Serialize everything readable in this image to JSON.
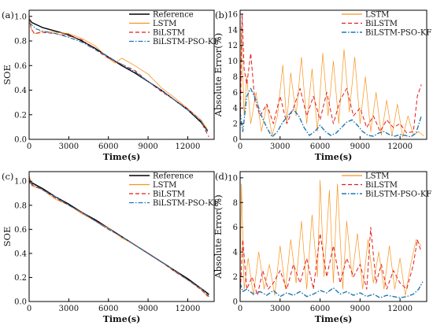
{
  "chart_data": [
    {
      "id": "a",
      "panel_label": "(a)",
      "type": "line",
      "xlabel": "Time(s)",
      "ylabel": "SOE",
      "xlim": [
        0,
        14000
      ],
      "ylim": [
        0.0,
        1.05
      ],
      "xticks": [
        0,
        3000,
        6000,
        9000,
        12000
      ],
      "yticks": [
        0.0,
        0.2,
        0.4,
        0.6,
        0.8,
        1.0
      ],
      "ytick_decimals": 1,
      "legend": "top-right",
      "series": [
        {
          "name": "Reference",
          "color": "#000000",
          "dash": "",
          "width": 1.4,
          "x": [
            0,
            200,
            1000,
            2000,
            3000,
            4000,
            5000,
            6000,
            7000,
            8000,
            9000,
            10000,
            11000,
            12000,
            13000,
            13500
          ],
          "y": [
            0.98,
            0.95,
            0.91,
            0.88,
            0.85,
            0.8,
            0.74,
            0.67,
            0.6,
            0.54,
            0.47,
            0.4,
            0.32,
            0.24,
            0.14,
            0.07
          ]
        },
        {
          "name": "LSTM",
          "color": "#f7941d",
          "dash": "",
          "width": 0.8,
          "x": [
            0,
            150,
            400,
            1000,
            2000,
            3000,
            4000,
            5000,
            6000,
            6500,
            7000,
            8000,
            9000,
            10000,
            11000,
            12000,
            13000,
            13500
          ],
          "y": [
            1.0,
            0.9,
            0.86,
            0.88,
            0.87,
            0.86,
            0.82,
            0.76,
            0.66,
            0.62,
            0.66,
            0.6,
            0.53,
            0.42,
            0.34,
            0.25,
            0.16,
            0.08
          ]
        },
        {
          "name": "BiLSTM",
          "color": "#e31a1c",
          "dash": "5,3",
          "width": 1.0,
          "x": [
            0,
            150,
            400,
            1000,
            2000,
            3000,
            4000,
            5000,
            6000,
            7000,
            8000,
            9000,
            10000,
            11000,
            12000,
            13000,
            13300,
            13600
          ],
          "y": [
            0.99,
            0.9,
            0.86,
            0.87,
            0.86,
            0.84,
            0.81,
            0.73,
            0.66,
            0.61,
            0.56,
            0.47,
            0.39,
            0.32,
            0.25,
            0.15,
            0.08,
            0.02
          ]
        },
        {
          "name": "BiLSTM-PSO-KF",
          "color": "#1f77b4",
          "dash": "6,2,1.5,2",
          "width": 1.2,
          "x": [
            0,
            500,
            1000,
            2000,
            3000,
            4000,
            5000,
            6000,
            7000,
            8000,
            9000,
            10000,
            11000,
            12000,
            13000,
            13500
          ],
          "y": [
            0.95,
            0.9,
            0.88,
            0.86,
            0.83,
            0.79,
            0.73,
            0.67,
            0.61,
            0.55,
            0.47,
            0.4,
            0.32,
            0.24,
            0.15,
            0.06
          ]
        }
      ]
    },
    {
      "id": "b",
      "panel_label": "(b)",
      "type": "line",
      "xlabel": "Time(s)",
      "ylabel": "Absolute Error(%)",
      "xlim": [
        0,
        14000
      ],
      "ylim": [
        0,
        16.5
      ],
      "xticks": [
        0,
        3000,
        6000,
        9000,
        12000
      ],
      "yticks": [
        0,
        2,
        4,
        6,
        8,
        10,
        12,
        14,
        16
      ],
      "ytick_decimals": 0,
      "legend": "top-right",
      "series": [
        {
          "name": "LSTM",
          "color": "#f7941d",
          "dash": "",
          "width": 0.7,
          "x": [
            0,
            100,
            300,
            500,
            800,
            1200,
            1600,
            2000,
            2400,
            2800,
            3200,
            3500,
            3800,
            4200,
            4600,
            5000,
            5400,
            5800,
            6200,
            6600,
            7000,
            7400,
            7800,
            8200,
            8600,
            9000,
            9400,
            9800,
            10200,
            10600,
            11000,
            11400,
            11800,
            12200,
            12600,
            13000,
            13400,
            13800
          ],
          "y": [
            0.2,
            14.5,
            3.0,
            8.0,
            2.0,
            6.0,
            1.0,
            4.5,
            0.5,
            3.0,
            9.5,
            2.0,
            8.5,
            3.0,
            10.5,
            2.0,
            9.0,
            1.0,
            11.0,
            3.0,
            10.0,
            2.0,
            11.5,
            3.5,
            10.5,
            2.0,
            8.0,
            1.0,
            6.0,
            0.5,
            5.0,
            0.5,
            4.5,
            0.3,
            3.0,
            0.5,
            1.0,
            0.4
          ]
        },
        {
          "name": "BiLSTM",
          "color": "#e31a1c",
          "dash": "5,3",
          "width": 1.0,
          "x": [
            0,
            150,
            300,
            500,
            800,
            1100,
            1500,
            2000,
            2500,
            3000,
            3500,
            4000,
            4500,
            5000,
            5500,
            6000,
            6500,
            7000,
            7500,
            8000,
            8500,
            9000,
            9500,
            10000,
            10500,
            11000,
            11500,
            12000,
            12500,
            13000,
            13300,
            13600
          ],
          "y": [
            1.0,
            16.0,
            9.0,
            7.0,
            11.0,
            5.0,
            3.0,
            4.5,
            2.0,
            5.5,
            2.0,
            4.0,
            6.5,
            3.0,
            5.5,
            2.5,
            6.0,
            2.0,
            5.0,
            6.5,
            3.0,
            4.0,
            1.5,
            3.0,
            1.0,
            2.5,
            1.5,
            2.0,
            0.8,
            1.0,
            5.5,
            7.0
          ]
        },
        {
          "name": "BiLSTM-PSO-KF",
          "color": "#1f77b4",
          "dash": "6,2,1.5,2",
          "width": 1.4,
          "x": [
            0,
            200,
            500,
            800,
            1200,
            1600,
            2000,
            2400,
            2800,
            3200,
            3600,
            4000,
            4400,
            4800,
            5200,
            5600,
            6000,
            6400,
            6800,
            7200,
            7600,
            8000,
            8400,
            8800,
            9200,
            9600,
            10000,
            10400,
            10800,
            11200,
            11600,
            12000,
            12400,
            12800,
            13200,
            13600
          ],
          "y": [
            3.5,
            1.0,
            5.5,
            6.5,
            5.0,
            3.0,
            1.5,
            0.3,
            1.0,
            2.2,
            3.0,
            3.8,
            3.0,
            1.5,
            0.5,
            1.0,
            1.8,
            1.0,
            0.5,
            0.8,
            1.5,
            2.2,
            2.5,
            1.8,
            1.0,
            0.5,
            0.4,
            0.8,
            1.0,
            0.6,
            0.4,
            0.6,
            0.5,
            0.3,
            0.8,
            3.0
          ]
        }
      ]
    },
    {
      "id": "c",
      "panel_label": "(c)",
      "type": "line",
      "xlabel": "Time(s)",
      "ylabel": "SOE",
      "xlim": [
        0,
        14000
      ],
      "ylim": [
        0.0,
        1.08
      ],
      "xticks": [
        0,
        3000,
        6000,
        9000,
        12000
      ],
      "yticks": [
        0.0,
        0.2,
        0.4,
        0.6,
        0.8,
        1.0
      ],
      "ytick_decimals": 1,
      "legend": "top-right",
      "series": [
        {
          "name": "Reference",
          "color": "#000000",
          "dash": "",
          "width": 1.4,
          "x": [
            0,
            1000,
            2000,
            3000,
            4000,
            5000,
            6000,
            7000,
            8000,
            9000,
            10000,
            11000,
            12000,
            13000,
            13600
          ],
          "y": [
            1.0,
            0.94,
            0.87,
            0.81,
            0.74,
            0.68,
            0.61,
            0.54,
            0.47,
            0.4,
            0.33,
            0.26,
            0.19,
            0.11,
            0.06
          ]
        },
        {
          "name": "LSTM",
          "color": "#f7941d",
          "dash": "",
          "width": 0.8,
          "x": [
            0,
            200,
            1000,
            2000,
            3000,
            4000,
            5000,
            6000,
            7000,
            8000,
            9000,
            10000,
            11000,
            12000,
            13000,
            13500
          ],
          "y": [
            1.05,
            0.96,
            0.93,
            0.85,
            0.8,
            0.73,
            0.67,
            0.61,
            0.53,
            0.47,
            0.4,
            0.33,
            0.25,
            0.18,
            0.1,
            0.04
          ]
        },
        {
          "name": "BiLSTM",
          "color": "#e31a1c",
          "dash": "5,3",
          "width": 1.0,
          "x": [
            0,
            200,
            1000,
            2000,
            3000,
            4000,
            5000,
            6000,
            7000,
            8000,
            9000,
            10000,
            11000,
            12000,
            13000,
            13600
          ],
          "y": [
            1.03,
            0.97,
            0.93,
            0.86,
            0.8,
            0.74,
            0.67,
            0.6,
            0.54,
            0.47,
            0.4,
            0.33,
            0.25,
            0.18,
            0.1,
            0.04
          ]
        },
        {
          "name": "BiLSTM-PSO-KF",
          "color": "#1f77b4",
          "dash": "6,2,1.5,2",
          "width": 1.2,
          "x": [
            0,
            1000,
            2000,
            3000,
            4000,
            5000,
            6000,
            7000,
            8000,
            9000,
            10000,
            11000,
            12000,
            13000,
            13600
          ],
          "y": [
            0.99,
            0.93,
            0.87,
            0.8,
            0.74,
            0.67,
            0.6,
            0.54,
            0.47,
            0.4,
            0.33,
            0.26,
            0.18,
            0.11,
            0.05
          ]
        }
      ]
    },
    {
      "id": "d",
      "panel_label": "(d)",
      "type": "line",
      "xlabel": "Time(s)",
      "ylabel": "Absolute Error(%)",
      "xlim": [
        0,
        14000
      ],
      "ylim": [
        0,
        10.5
      ],
      "xticks": [
        0,
        3000,
        6000,
        9000,
        12000
      ],
      "yticks": [
        0,
        2,
        4,
        6,
        8,
        10
      ],
      "ytick_decimals": 0,
      "legend": "top-right",
      "series": [
        {
          "name": "LSTM",
          "color": "#f7941d",
          "dash": "",
          "width": 0.7,
          "x": [
            0,
            100,
            300,
            600,
            1000,
            1400,
            1800,
            2200,
            2600,
            3000,
            3400,
            3800,
            4200,
            4600,
            5000,
            5400,
            5800,
            6000,
            6300,
            6700,
            7000,
            7300,
            7700,
            8000,
            8400,
            8800,
            9200,
            9600,
            10000,
            10400,
            10800,
            11200,
            11600,
            12000,
            12400,
            12800,
            13200,
            13600
          ],
          "y": [
            0.5,
            9.5,
            1.0,
            3.5,
            0.5,
            4.0,
            1.0,
            3.0,
            0.5,
            4.5,
            1.0,
            5.0,
            1.5,
            6.5,
            1.0,
            7.0,
            2.0,
            9.8,
            2.0,
            9.0,
            1.5,
            9.5,
            1.0,
            6.5,
            2.0,
            5.5,
            1.0,
            5.0,
            1.5,
            4.0,
            1.0,
            4.5,
            1.0,
            3.5,
            0.5,
            3.0,
            5.0,
            4.5
          ]
        },
        {
          "name": "BiLSTM",
          "color": "#e31a1c",
          "dash": "5,3",
          "width": 1.0,
          "x": [
            0,
            200,
            500,
            900,
            1300,
            1700,
            2100,
            2500,
            3000,
            3500,
            4000,
            4500,
            5000,
            5500,
            6000,
            6500,
            7000,
            7500,
            8000,
            8500,
            9000,
            9500,
            9800,
            10200,
            10600,
            11000,
            11500,
            12000,
            12500,
            13000,
            13300,
            13600
          ],
          "y": [
            0.5,
            5.0,
            1.0,
            2.0,
            0.5,
            2.5,
            1.0,
            1.5,
            2.5,
            1.0,
            3.0,
            1.5,
            3.5,
            1.0,
            5.5,
            2.0,
            4.5,
            1.5,
            3.5,
            2.0,
            3.0,
            1.0,
            6.0,
            1.5,
            3.0,
            1.0,
            2.5,
            1.5,
            1.0,
            3.0,
            5.0,
            4.0
          ]
        },
        {
          "name": "BiLSTM-PSO-KF",
          "color": "#1f77b4",
          "dash": "6,2,1.5,2",
          "width": 1.4,
          "x": [
            0,
            200,
            500,
            1000,
            1500,
            2000,
            2500,
            3000,
            3500,
            4000,
            4500,
            5000,
            5500,
            6000,
            6500,
            7000,
            7500,
            8000,
            8500,
            9000,
            9500,
            10000,
            10500,
            11000,
            11500,
            12000,
            12500,
            13000,
            13400,
            13700
          ],
          "y": [
            1.5,
            0.8,
            1.0,
            0.6,
            0.8,
            0.5,
            0.9,
            0.4,
            0.7,
            0.5,
            0.8,
            0.4,
            0.6,
            0.9,
            0.7,
            1.1,
            0.6,
            0.8,
            0.5,
            0.7,
            0.4,
            0.6,
            0.3,
            0.5,
            0.4,
            0.3,
            0.4,
            0.6,
            1.0,
            1.6
          ]
        }
      ]
    }
  ]
}
